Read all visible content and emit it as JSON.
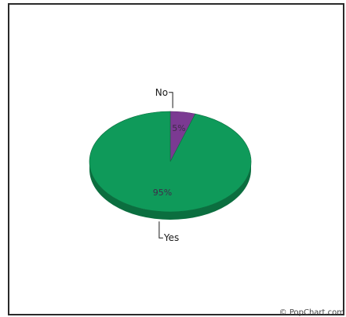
{
  "chart_data": {
    "type": "pie",
    "style": "3d-tilted",
    "slices": [
      {
        "label": "No",
        "value": 5,
        "value_label": "5%",
        "color": "#7b3a92",
        "side_color": "#5a2a6c"
      },
      {
        "label": "Yes",
        "value": 95,
        "value_label": "95%",
        "color": "#0f9a5a",
        "side_color": "#0b6e3f"
      }
    ],
    "start_angle_deg": -90,
    "legend": "none"
  },
  "colors": {
    "background": "#ffffff",
    "frame": "#2a2a2a",
    "leader": "#1a1a1a"
  },
  "watermark": "© PopChart.com"
}
